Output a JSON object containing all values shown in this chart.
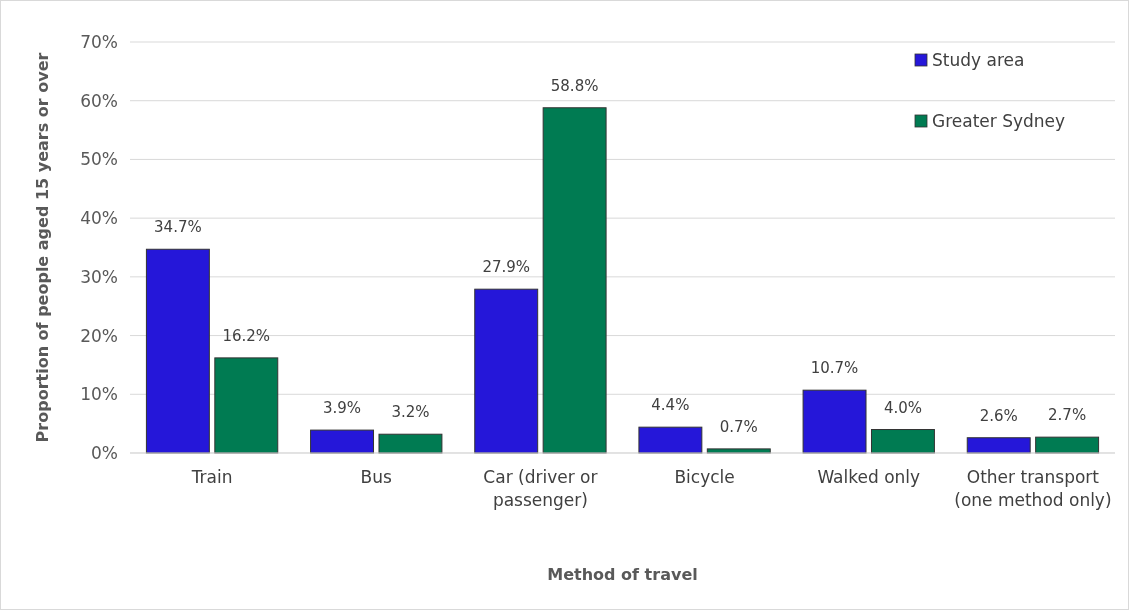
{
  "chart_data": {
    "type": "bar",
    "xlabel": "Method of travel",
    "ylabel": "Proportion of people aged 15 years or over",
    "categories": [
      "Train",
      "Bus",
      "Car (driver or passenger)",
      "Bicycle",
      "Walked only",
      "Other transport (one method only)"
    ],
    "series": [
      {
        "name": "Study area",
        "color": "#2517d9",
        "values": [
          34.7,
          3.9,
          27.9,
          4.4,
          10.7,
          2.6
        ],
        "value_labels": [
          "34.7%",
          "3.9%",
          "27.9%",
          "4.4%",
          "10.7%",
          "2.6%"
        ]
      },
      {
        "name": "Greater Sydney",
        "color": "#007b52",
        "values": [
          16.2,
          3.2,
          58.8,
          0.7,
          4.0,
          2.7
        ],
        "value_labels": [
          "16.2%",
          "3.2%",
          "58.8%",
          "0.7%",
          "4.0%",
          "2.7%"
        ]
      }
    ],
    "ylim": [
      0,
      70
    ],
    "yticks": [
      {
        "value": 0,
        "label": "0%"
      },
      {
        "value": 10,
        "label": "10%"
      },
      {
        "value": 20,
        "label": "20%"
      },
      {
        "value": 30,
        "label": "30%"
      },
      {
        "value": 40,
        "label": "40%"
      },
      {
        "value": 50,
        "label": "50%"
      },
      {
        "value": 60,
        "label": "60%"
      },
      {
        "value": 70,
        "label": "70%"
      }
    ],
    "grid": "y",
    "legend": "top right"
  }
}
